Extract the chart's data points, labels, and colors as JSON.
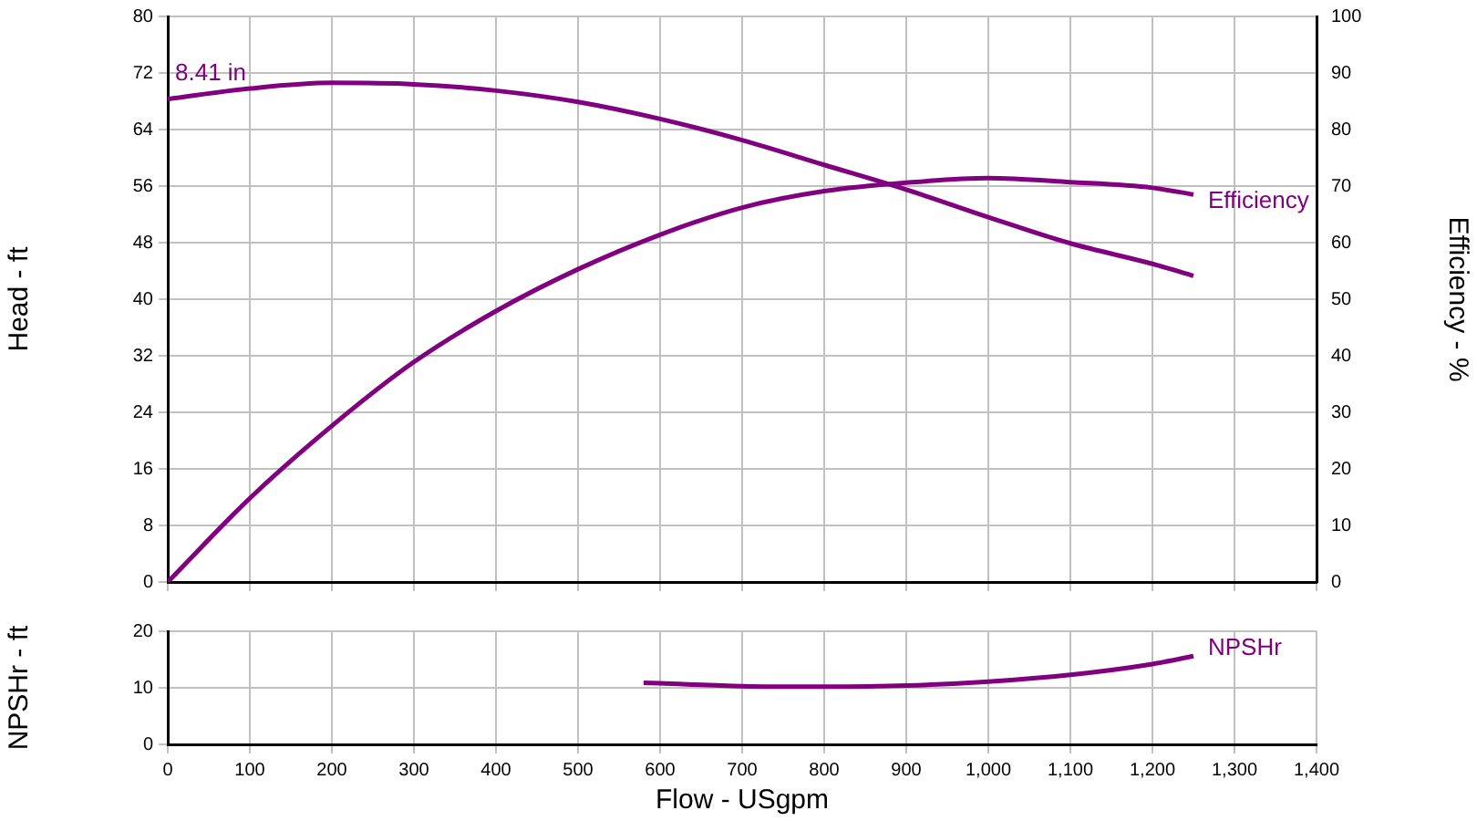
{
  "chart_data": [
    {
      "type": "line",
      "ylabel": "Head - ft",
      "y2label": "Efficiency - %",
      "xlim": [
        0,
        1400
      ],
      "xticks": [
        0,
        100,
        200,
        300,
        400,
        500,
        600,
        700,
        800,
        900,
        1000,
        1100,
        1200,
        1300,
        1400
      ],
      "ylim": [
        0,
        80
      ],
      "yticks": [
        0,
        8,
        16,
        24,
        32,
        40,
        48,
        56,
        64,
        72,
        80
      ],
      "y2lim": [
        0,
        100
      ],
      "y2ticks": [
        0,
        10,
        20,
        30,
        40,
        50,
        60,
        70,
        80,
        90,
        100
      ],
      "grid": true,
      "legend": false,
      "marker": "none",
      "tick_labels": "y",
      "series": [
        {
          "name": "8.41 in",
          "color": "#800080",
          "axis": "y",
          "x": [
            0,
            100,
            200,
            300,
            400,
            500,
            600,
            700,
            800,
            900,
            1000,
            1100,
            1200,
            1250
          ],
          "values": [
            68.3,
            69.8,
            70.6,
            70.4,
            69.5,
            67.9,
            65.5,
            62.5,
            59.0,
            55.5,
            51.6,
            47.9,
            45.0,
            43.3
          ]
        },
        {
          "name": "Efficiency",
          "color": "#800080",
          "axis": "y2",
          "x": [
            0,
            100,
            200,
            300,
            400,
            500,
            600,
            700,
            800,
            900,
            1000,
            1100,
            1200,
            1250
          ],
          "values": [
            0,
            14.8,
            27.6,
            38.9,
            47.9,
            55.3,
            61.4,
            66.2,
            69.1,
            70.6,
            71.4,
            70.7,
            69.7,
            68.5
          ]
        }
      ]
    },
    {
      "type": "line",
      "xlabel": "Flow - USgpm",
      "ylabel": "NPSHr - ft",
      "xlim": [
        0,
        1400
      ],
      "xticks": [
        0,
        {
          "value": 100,
          "label": "100"
        },
        200,
        300,
        400,
        500,
        600,
        700,
        800,
        900,
        {
          "value": 1000,
          "label": "1,000"
        },
        {
          "value": 1100,
          "label": "1,100"
        },
        {
          "value": 1200,
          "label": "1,200"
        },
        {
          "value": 1300,
          "label": "1,300"
        },
        {
          "value": 1400,
          "label": "1,400"
        }
      ],
      "ylim": [
        0,
        20
      ],
      "yticks": [
        0,
        10,
        20
      ],
      "grid": true,
      "legend": false,
      "marker": "none",
      "series": [
        {
          "name": "NPSHr",
          "color": "#800080",
          "x": [
            580,
            600,
            700,
            800,
            900,
            1000,
            1100,
            1200,
            1250
          ],
          "values": [
            10.9,
            10.8,
            10.3,
            10.2,
            10.4,
            11.1,
            12.3,
            14.2,
            15.6
          ]
        }
      ]
    }
  ]
}
